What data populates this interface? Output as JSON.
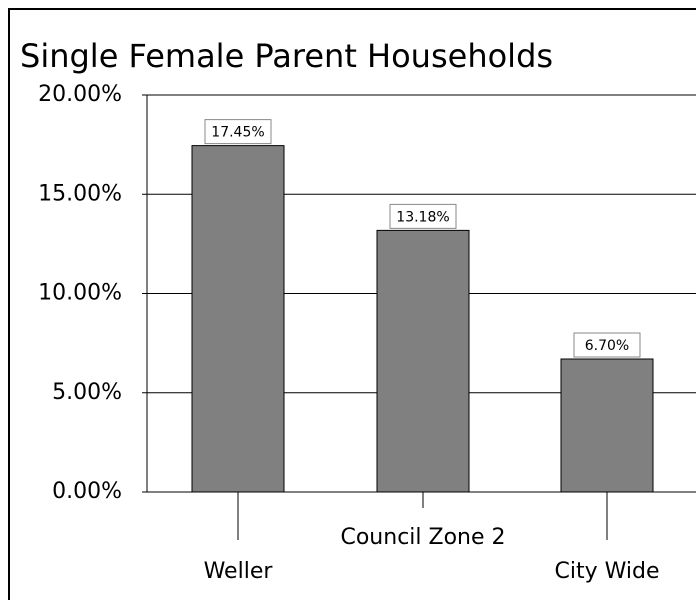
{
  "chart_data": {
    "type": "bar",
    "title": "Single Female Parent Households",
    "categories": [
      "Weller",
      "Council Zone 2",
      "City Wide"
    ],
    "values": [
      17.45,
      13.18,
      6.7
    ],
    "value_labels": [
      "17.45%",
      "13.18%",
      "6.70%"
    ],
    "color": "#808080",
    "ylim": [
      0,
      20
    ],
    "yticks": [
      {
        "value": 0,
        "label": "0.00%"
      },
      {
        "value": 5,
        "label": "5.00%"
      },
      {
        "value": 10,
        "label": "10.00%"
      },
      {
        "value": 15,
        "label": "15.00%"
      },
      {
        "value": 20,
        "label": "20.00%"
      }
    ],
    "grid": true
  }
}
